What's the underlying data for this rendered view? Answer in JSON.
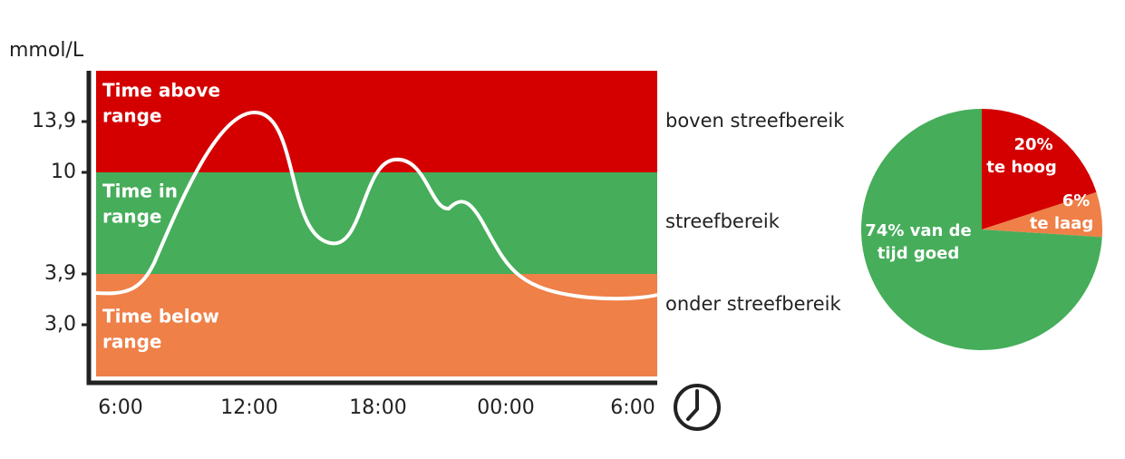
{
  "y_axis": {
    "label": "mmol/L",
    "ticks": [
      "13,9",
      "10",
      "3,9",
      "3,0"
    ]
  },
  "bands": [
    {
      "label_lines": [
        "Time above",
        "range"
      ],
      "zone": "boven streefbereik",
      "color": "#d40000"
    },
    {
      "label_lines": [
        "Time in",
        "range"
      ],
      "zone": "streefbereik",
      "color": "#46ad5a"
    },
    {
      "label_lines": [
        "Time below",
        "range"
      ],
      "zone": "onder streefbereik",
      "color": "#ee8048"
    }
  ],
  "x_axis": {
    "ticks": [
      "6:00",
      "12:00",
      "18:00",
      "00:00",
      "6:00"
    ]
  },
  "pie": {
    "segments": [
      {
        "value": 20,
        "label": "20%",
        "sublabel": "te hoog",
        "color": "#d40000"
      },
      {
        "value": 6,
        "label": "6%",
        "sublabel": "te laag",
        "color": "#ee8048"
      },
      {
        "value": 74,
        "label": "74% van de",
        "sublabel": "tijd goed",
        "color": "#46ad5a"
      }
    ]
  }
}
